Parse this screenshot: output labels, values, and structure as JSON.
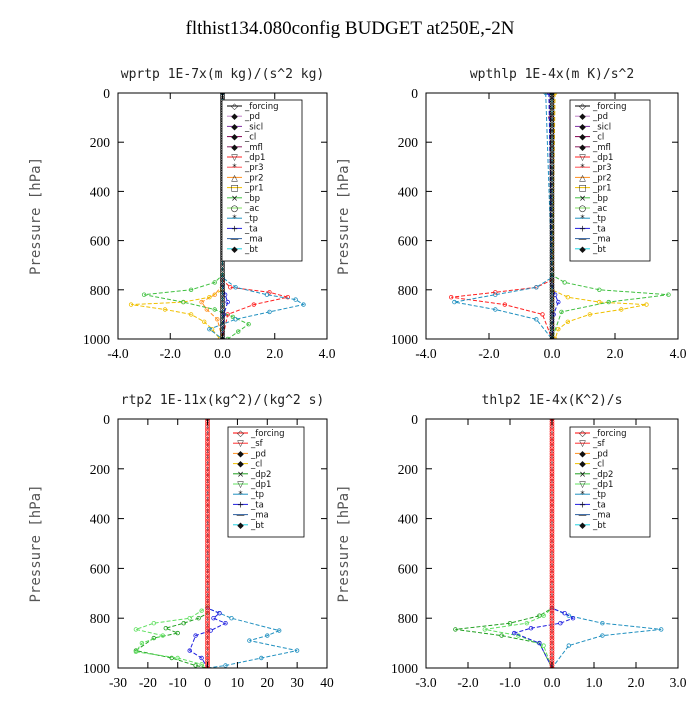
{
  "figure": {
    "title": "flthist134.080config  BUDGET at250E,-2N",
    "colors": {
      "forcing": "#000000",
      "pd": "#c080c8",
      "sicl": "#8030a0",
      "cl": "#800050",
      "mfl": "#8a2060",
      "dp1": "#ff2020",
      "pr3": "#ff5050",
      "pr2": "#ff9020",
      "pr1": "#f0c000",
      "bp": "#40c040",
      "ac": "#80e060",
      "tp": "#2090c0",
      "ta": "#2020e0",
      "ma": "#3060a0",
      "bt": "#20d0e0",
      "sf": "#ff3030",
      "dp2": "#20a020",
      "dp1_green": "#60e060",
      "mean": "#ff0000"
    }
  },
  "chart_data": [
    {
      "type": "line",
      "title": "wprtp   1E-7x(m kg)/(s^2 kg)",
      "ylabel": "Pressure [hPa]",
      "xlim": [
        -4,
        4
      ],
      "ylim": [
        1000,
        0
      ],
      "x_ticks": [
        "-4.0",
        "-2.0",
        "0.0",
        "2.0",
        "4.0"
      ],
      "y_ticks": [
        "0",
        "200",
        "400",
        "600",
        "800",
        "1000"
      ],
      "legend_position": "top-right",
      "legend": [
        "_forcing",
        "_pd",
        "_sicl",
        "_cl",
        "_mfl",
        "_dp1",
        "_pr3",
        "_pr2",
        "_pr1",
        "_bp",
        "_ac",
        "_tp",
        "_ta",
        "_ma",
        "_bt"
      ],
      "series": [
        {
          "name": "_forcing",
          "color": "#000000",
          "x": [
            0,
            0
          ],
          "y": [
            0,
            1000
          ]
        },
        {
          "name": "_pd",
          "color": "#c080c8",
          "x": [
            0,
            0
          ],
          "y": [
            0,
            1000
          ]
        },
        {
          "name": "_sicl",
          "color": "#8030a0",
          "x": [
            0,
            0
          ],
          "y": [
            0,
            1000
          ]
        },
        {
          "name": "_cl",
          "color": "#800050",
          "x": [
            0,
            0
          ],
          "y": [
            0,
            1000
          ]
        },
        {
          "name": "_mfl",
          "color": "#8a2060",
          "x": [
            0,
            0
          ],
          "y": [
            0,
            1000
          ]
        },
        {
          "name": "_dp1",
          "color": "#ff2020",
          "x": [
            0,
            0,
            0.3,
            1.8,
            2.5,
            1.2,
            0.2,
            0
          ],
          "y": [
            0,
            760,
            790,
            810,
            830,
            860,
            900,
            1000
          ]
        },
        {
          "name": "_pr3",
          "color": "#ff5050",
          "x": [
            0,
            0
          ],
          "y": [
            0,
            1000
          ]
        },
        {
          "name": "_pr2",
          "color": "#ff9020",
          "x": [
            0,
            0,
            -0.3,
            -0.8,
            -0.6,
            -0.2,
            0
          ],
          "y": [
            0,
            780,
            820,
            850,
            880,
            920,
            1000
          ]
        },
        {
          "name": "_pr1",
          "color": "#f0c000",
          "x": [
            0,
            0,
            -0.5,
            -1.5,
            -3.5,
            -2.2,
            -1.2,
            -0.7,
            -0.4,
            -0.1
          ],
          "y": [
            0,
            800,
            830,
            850,
            860,
            880,
            900,
            930,
            960,
            1000
          ]
        },
        {
          "name": "_bp",
          "color": "#40c040",
          "x": [
            0,
            0,
            -0.3,
            -1.2,
            -3.0,
            -1.5,
            -0.3,
            0.4,
            1.0,
            0.6,
            0.2
          ],
          "y": [
            0,
            740,
            770,
            800,
            820,
            850,
            880,
            910,
            940,
            970,
            1000
          ]
        },
        {
          "name": "_ac",
          "color": "#80e060",
          "x": [
            0,
            0
          ],
          "y": [
            0,
            1000
          ]
        },
        {
          "name": "_tp",
          "color": "#2090c0",
          "x": [
            0,
            0,
            0.5,
            1.7,
            2.8,
            3.1,
            1.8,
            0.5,
            -0.5,
            0
          ],
          "y": [
            0,
            750,
            790,
            820,
            840,
            860,
            890,
            920,
            960,
            1000
          ]
        },
        {
          "name": "_ta",
          "color": "#2020e0",
          "x": [
            0,
            0,
            0.1,
            0.2,
            0.05,
            0
          ],
          "y": [
            0,
            780,
            820,
            850,
            900,
            1000
          ]
        },
        {
          "name": "_ma",
          "color": "#3060a0",
          "x": [
            0,
            0
          ],
          "y": [
            0,
            1000
          ]
        },
        {
          "name": "_bt",
          "color": "#20d0e0",
          "x": [
            0,
            0
          ],
          "y": [
            0,
            1000
          ]
        }
      ]
    },
    {
      "type": "line",
      "title": "wpthlp   1E-4x(m K)/s^2",
      "ylabel": "Pressure [hPa]",
      "xlim": [
        -4,
        4
      ],
      "ylim": [
        1000,
        0
      ],
      "x_ticks": [
        "-4.0",
        "-2.0",
        "0.0",
        "2.0",
        "4.0"
      ],
      "y_ticks": [
        "0",
        "200",
        "400",
        "600",
        "800",
        "1000"
      ],
      "legend_position": "top-right",
      "legend": [
        "_forcing",
        "_pd",
        "_sicl",
        "_cl",
        "_mfl",
        "_dp1",
        "_pr3",
        "_pr2",
        "_pr1",
        "_bp",
        "_ac",
        "_tp",
        "_ta",
        "_ma",
        "_bt"
      ],
      "series": [
        {
          "name": "_forcing",
          "color": "#000000",
          "x": [
            0,
            0
          ],
          "y": [
            0,
            1000
          ]
        },
        {
          "name": "_pd",
          "color": "#c080c8",
          "x": [
            0,
            0
          ],
          "y": [
            0,
            1000
          ]
        },
        {
          "name": "_sicl",
          "color": "#8030a0",
          "x": [
            0,
            0
          ],
          "y": [
            0,
            1000
          ]
        },
        {
          "name": "_cl",
          "color": "#800050",
          "x": [
            -0.1,
            -0.05,
            0
          ],
          "y": [
            0,
            100,
            1000
          ]
        },
        {
          "name": "_mfl",
          "color": "#8a2060",
          "x": [
            0,
            0
          ],
          "y": [
            0,
            1000
          ]
        },
        {
          "name": "_dp1",
          "color": "#ff2020",
          "x": [
            0,
            0,
            -0.5,
            -1.8,
            -3.2,
            -1.5,
            -0.3,
            0
          ],
          "y": [
            0,
            760,
            790,
            810,
            830,
            860,
            900,
            1000
          ]
        },
        {
          "name": "_pr3",
          "color": "#ff5050",
          "x": [
            0,
            0
          ],
          "y": [
            0,
            1000
          ]
        },
        {
          "name": "_pr2",
          "color": "#ff9020",
          "x": [
            0.05,
            0.05
          ],
          "y": [
            0,
            1000
          ]
        },
        {
          "name": "_pr1",
          "color": "#f0c000",
          "x": [
            0.1,
            0,
            0.5,
            1.5,
            3.0,
            2.2,
            1.2,
            0.5,
            0.2,
            0.1
          ],
          "y": [
            0,
            800,
            830,
            850,
            860,
            880,
            900,
            930,
            960,
            1000
          ]
        },
        {
          "name": "_bp",
          "color": "#40c040",
          "x": [
            0,
            0,
            0.4,
            1.5,
            3.7,
            1.8,
            0.3,
            0
          ],
          "y": [
            0,
            740,
            770,
            800,
            820,
            850,
            890,
            1000
          ]
        },
        {
          "name": "_ac",
          "color": "#80e060",
          "x": [
            0,
            0
          ],
          "y": [
            0,
            1000
          ]
        },
        {
          "name": "_tp",
          "color": "#2090c0",
          "x": [
            -0.2,
            0,
            -0.5,
            -1.8,
            -3.1,
            -1.8,
            -0.5,
            0
          ],
          "y": [
            0,
            750,
            790,
            820,
            850,
            880,
            920,
            1000
          ]
        },
        {
          "name": "_ta",
          "color": "#2020e0",
          "x": [
            -0.1,
            0,
            0.1,
            0.2,
            0.05,
            0
          ],
          "y": [
            0,
            780,
            820,
            850,
            900,
            1000
          ]
        },
        {
          "name": "_ma",
          "color": "#3060a0",
          "x": [
            0,
            0
          ],
          "y": [
            0,
            1000
          ]
        },
        {
          "name": "_bt",
          "color": "#20d0e0",
          "x": [
            0,
            0
          ],
          "y": [
            0,
            1000
          ]
        }
      ]
    },
    {
      "type": "line",
      "title": "rtp2   1E-11x(kg^2)/(kg^2 s)",
      "ylabel": "Pressure [hPa]",
      "xlim": [
        -30,
        40
      ],
      "ylim": [
        1000,
        0
      ],
      "x_ticks": [
        "-30",
        "-20",
        "-10",
        "0",
        "10",
        "20",
        "30",
        "40"
      ],
      "y_ticks": [
        "0",
        "200",
        "400",
        "600",
        "800",
        "1000"
      ],
      "legend_position": "top-right",
      "legend": [
        "_forcing",
        "_sf",
        "_pd",
        "_cl",
        "_dp2",
        "_dp1",
        "_tp",
        "_ta",
        "_ma",
        "_bt"
      ],
      "series": [
        {
          "name": "_forcing",
          "color": "#ff0000",
          "x": [
            0,
            0
          ],
          "y": [
            0,
            1000
          ]
        },
        {
          "name": "_sf",
          "color": "#ff3030",
          "x": [
            0,
            0
          ],
          "y": [
            0,
            1000
          ]
        },
        {
          "name": "_pd",
          "color": "#ff9020",
          "x": [
            0,
            0
          ],
          "y": [
            0,
            1000
          ]
        },
        {
          "name": "_cl",
          "color": "#f0c000",
          "x": [
            0,
            0
          ],
          "y": [
            0,
            1000
          ]
        },
        {
          "name": "_dp2",
          "color": "#20a020",
          "x": [
            0,
            0,
            -3,
            -8,
            -14,
            -10,
            -18,
            -24,
            -12,
            -4,
            0
          ],
          "y": [
            0,
            780,
            800,
            820,
            840,
            860,
            880,
            930,
            960,
            990,
            1000
          ]
        },
        {
          "name": "_dp1",
          "color": "#60e060",
          "x": [
            0,
            0,
            -2,
            -6,
            -18,
            -24,
            -15,
            -22,
            -24,
            -10,
            -2,
            0
          ],
          "y": [
            0,
            750,
            770,
            800,
            820,
            845,
            870,
            900,
            935,
            960,
            985,
            1000
          ]
        },
        {
          "name": "_tp",
          "color": "#2090c0",
          "x": [
            0,
            0,
            4,
            8,
            24,
            20,
            14,
            30,
            18,
            6,
            0
          ],
          "y": [
            0,
            760,
            780,
            800,
            850,
            870,
            890,
            930,
            960,
            990,
            1000
          ]
        },
        {
          "name": "_ta",
          "color": "#2020e0",
          "x": [
            0,
            0,
            4,
            2,
            6,
            1,
            -4,
            -6,
            -2,
            0
          ],
          "y": [
            0,
            760,
            780,
            800,
            820,
            850,
            870,
            930,
            960,
            1000
          ]
        },
        {
          "name": "_ma",
          "color": "#3060a0",
          "x": [
            0,
            0
          ],
          "y": [
            0,
            1000
          ]
        },
        {
          "name": "_bt",
          "color": "#20d0e0",
          "x": [
            0,
            0
          ],
          "y": [
            0,
            1000
          ]
        }
      ]
    },
    {
      "type": "line",
      "title": "thlp2   1E-4x(K^2)/s",
      "ylabel": "Pressure [hPa]",
      "xlim": [
        -3,
        3
      ],
      "ylim": [
        1000,
        0
      ],
      "x_ticks": [
        "-3.0",
        "-2.0",
        "-1.0",
        "0.0",
        "1.0",
        "2.0",
        "3.0"
      ],
      "y_ticks": [
        "0",
        "200",
        "400",
        "600",
        "800",
        "1000"
      ],
      "legend_position": "top-right",
      "legend": [
        "_forcing",
        "_sf",
        "_pd",
        "_cl",
        "_dp2",
        "_dp1",
        "_tp",
        "_ta",
        "_ma",
        "_bt"
      ],
      "series": [
        {
          "name": "_forcing",
          "color": "#ff0000",
          "x": [
            0,
            0
          ],
          "y": [
            0,
            1000
          ]
        },
        {
          "name": "_sf",
          "color": "#ff3030",
          "x": [
            0,
            0
          ],
          "y": [
            0,
            1000
          ]
        },
        {
          "name": "_pd",
          "color": "#ff9020",
          "x": [
            0,
            0
          ],
          "y": [
            0,
            1000
          ]
        },
        {
          "name": "_cl",
          "color": "#f0c000",
          "x": [
            0,
            0
          ],
          "y": [
            0,
            1000
          ]
        },
        {
          "name": "_dp2",
          "color": "#20a020",
          "x": [
            0,
            0,
            -0.3,
            -1.0,
            -2.3,
            -1.2,
            -0.3,
            0
          ],
          "y": [
            0,
            760,
            790,
            820,
            845,
            870,
            900,
            1000
          ]
        },
        {
          "name": "_dp1",
          "color": "#60e060",
          "x": [
            0,
            0,
            -0.2,
            -0.6,
            -1.6,
            -0.8,
            -0.2,
            0
          ],
          "y": [
            0,
            760,
            790,
            820,
            845,
            870,
            910,
            1000
          ]
        },
        {
          "name": "_tp",
          "color": "#2090c0",
          "x": [
            0,
            0,
            0.4,
            1.2,
            2.6,
            1.2,
            0.4,
            0
          ],
          "y": [
            0,
            760,
            790,
            820,
            845,
            870,
            910,
            1000
          ]
        },
        {
          "name": "_ta",
          "color": "#2020e0",
          "x": [
            0,
            0,
            0.3,
            0.5,
            0.2,
            -0.5,
            -0.9,
            -0.3,
            0
          ],
          "y": [
            0,
            760,
            780,
            800,
            820,
            840,
            860,
            900,
            1000
          ]
        },
        {
          "name": "_ma",
          "color": "#3060a0",
          "x": [
            0,
            0
          ],
          "y": [
            0,
            1000
          ]
        },
        {
          "name": "_bt",
          "color": "#20d0e0",
          "x": [
            0,
            0
          ],
          "y": [
            0,
            1000
          ]
        }
      ]
    }
  ]
}
